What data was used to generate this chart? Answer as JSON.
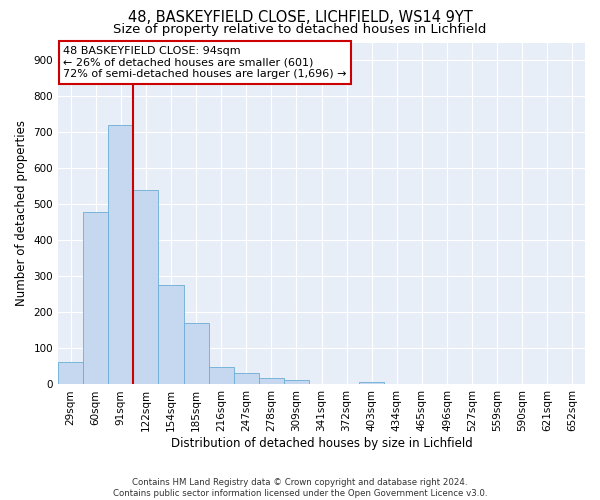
{
  "title_line1": "48, BASKEYFIELD CLOSE, LICHFIELD, WS14 9YT",
  "title_line2": "Size of property relative to detached houses in Lichfield",
  "xlabel": "Distribution of detached houses by size in Lichfield",
  "ylabel": "Number of detached properties",
  "categories": [
    "29sqm",
    "60sqm",
    "91sqm",
    "122sqm",
    "154sqm",
    "185sqm",
    "216sqm",
    "247sqm",
    "278sqm",
    "309sqm",
    "341sqm",
    "372sqm",
    "403sqm",
    "434sqm",
    "465sqm",
    "496sqm",
    "527sqm",
    "559sqm",
    "590sqm",
    "621sqm",
    "652sqm"
  ],
  "values": [
    62,
    480,
    720,
    540,
    275,
    170,
    48,
    33,
    18,
    13,
    0,
    0,
    8,
    0,
    0,
    0,
    0,
    0,
    0,
    0,
    0
  ],
  "bar_color": "#c5d8f0",
  "bar_edge_color": "#6aaed6",
  "vline_color": "#cc0000",
  "annotation_box_text": "48 BASKEYFIELD CLOSE: 94sqm\n← 26% of detached houses are smaller (601)\n72% of semi-detached houses are larger (1,696) →",
  "annotation_box_facecolor": "white",
  "annotation_box_edgecolor": "#cc0000",
  "background_color": "#e8eef8",
  "ylim": [
    0,
    950
  ],
  "yticks": [
    0,
    100,
    200,
    300,
    400,
    500,
    600,
    700,
    800,
    900
  ],
  "footer_text": "Contains HM Land Registry data © Crown copyright and database right 2024.\nContains public sector information licensed under the Open Government Licence v3.0.",
  "title_fontsize": 10.5,
  "subtitle_fontsize": 9.5,
  "tick_fontsize": 7.5,
  "ylabel_fontsize": 8.5,
  "xlabel_fontsize": 8.5,
  "annotation_fontsize": 8
}
